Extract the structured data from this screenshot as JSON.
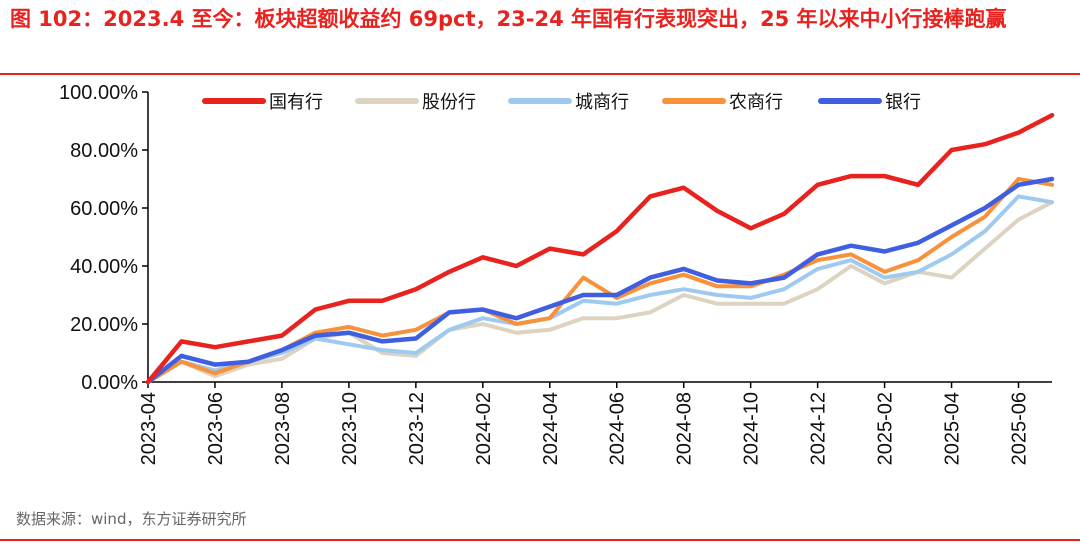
{
  "header": {
    "title": "图 102：2023.4 至今：板块超额收益约 69pct，23-24 年国有行表现突出，25 年以来中小行接棒跑赢"
  },
  "footer": {
    "source": "数据来源：wind，东方证券研究所"
  },
  "chart_data": {
    "type": "line",
    "title": "",
    "xlabel": "",
    "ylabel": "",
    "ylim": [
      0,
      100
    ],
    "y_tick_labels": [
      "0.00%",
      "20.00%",
      "40.00%",
      "60.00%",
      "80.00%",
      "100.00%"
    ],
    "x_tick_labels": [
      "2023-04",
      "2023-06",
      "2023-08",
      "2023-10",
      "2023-12",
      "2024-02",
      "2024-04",
      "2024-06",
      "2024-08",
      "2024-10",
      "2024-12",
      "2025-02",
      "2025-04",
      "2025-06"
    ],
    "x_start": "2023-04",
    "x_end": "2025-07",
    "legend_position": "top",
    "x": [
      "2023-04",
      "2023-05",
      "2023-06",
      "2023-07",
      "2023-08",
      "2023-09",
      "2023-10",
      "2023-11",
      "2023-12",
      "2024-01",
      "2024-02",
      "2024-03",
      "2024-04",
      "2024-05",
      "2024-06",
      "2024-07",
      "2024-08",
      "2024-09",
      "2024-10",
      "2024-11",
      "2024-12",
      "2025-01",
      "2025-02",
      "2025-03",
      "2025-04",
      "2025-05",
      "2025-06",
      "2025-07"
    ],
    "series": [
      {
        "name": "国有行",
        "color": "#e8231f",
        "values": [
          0,
          14,
          12,
          14,
          16,
          25,
          28,
          28,
          32,
          38,
          43,
          40,
          46,
          44,
          52,
          64,
          67,
          59,
          53,
          58,
          68,
          71,
          71,
          68,
          80,
          82,
          86,
          92
        ]
      },
      {
        "name": "股份行",
        "color": "#ddd3c0",
        "values": [
          0,
          7,
          2,
          6,
          8,
          15,
          17,
          10,
          9,
          18,
          20,
          17,
          18,
          22,
          22,
          24,
          30,
          27,
          27,
          27,
          32,
          40,
          34,
          38,
          36,
          46,
          56,
          62
        ]
      },
      {
        "name": "城商行",
        "color": "#9fcaf0",
        "values": [
          0,
          7,
          4,
          7,
          10,
          15,
          13,
          11,
          10,
          18,
          22,
          20,
          22,
          28,
          27,
          30,
          32,
          30,
          29,
          32,
          39,
          42,
          36,
          38,
          44,
          52,
          64,
          62
        ]
      },
      {
        "name": "农商行",
        "color": "#f7913a",
        "values": [
          0,
          7,
          3,
          7,
          11,
          17,
          19,
          16,
          18,
          24,
          25,
          20,
          22,
          36,
          29,
          34,
          37,
          33,
          33,
          37,
          42,
          44,
          38,
          42,
          50,
          57,
          70,
          68
        ]
      },
      {
        "name": "银行",
        "color": "#3f5fe0",
        "values": [
          0,
          9,
          6,
          7,
          11,
          16,
          17,
          14,
          15,
          24,
          25,
          22,
          26,
          30,
          30,
          36,
          39,
          35,
          34,
          36,
          44,
          47,
          45,
          48,
          54,
          60,
          68,
          70
        ]
      }
    ]
  }
}
